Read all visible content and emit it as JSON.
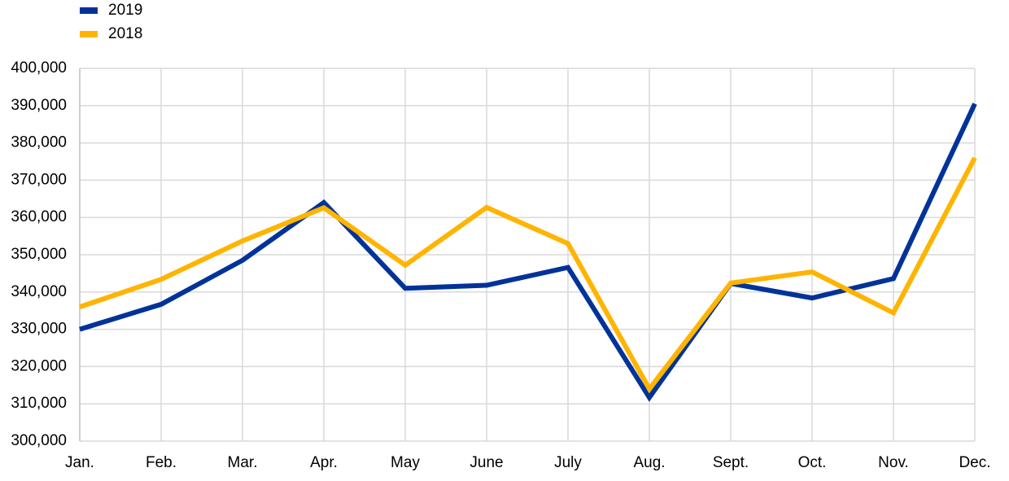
{
  "chart_data": {
    "type": "line",
    "categories": [
      "Jan.",
      "Feb.",
      "Mar.",
      "Apr.",
      "May",
      "June",
      "July",
      "Aug.",
      "Sept.",
      "Oct.",
      "Nov.",
      "Dec."
    ],
    "series": [
      {
        "name": "2019",
        "color": "#003399",
        "values": [
          330000,
          336700,
          348500,
          364000,
          341000,
          341800,
          346600,
          311700,
          342300,
          338400,
          343600,
          390500
        ]
      },
      {
        "name": "2018",
        "color": "#FFB400",
        "values": [
          336000,
          343400,
          353700,
          362600,
          347200,
          362700,
          353000,
          314000,
          342400,
          345400,
          334400,
          376000
        ]
      }
    ],
    "ylim": [
      300000,
      400000
    ],
    "yticks": [
      "300,000",
      "310,000",
      "320,000",
      "330,000",
      "340,000",
      "350,000",
      "360,000",
      "370,000",
      "380,000",
      "390,000",
      "400,000"
    ],
    "grid": true,
    "legend_position": "top-left"
  }
}
